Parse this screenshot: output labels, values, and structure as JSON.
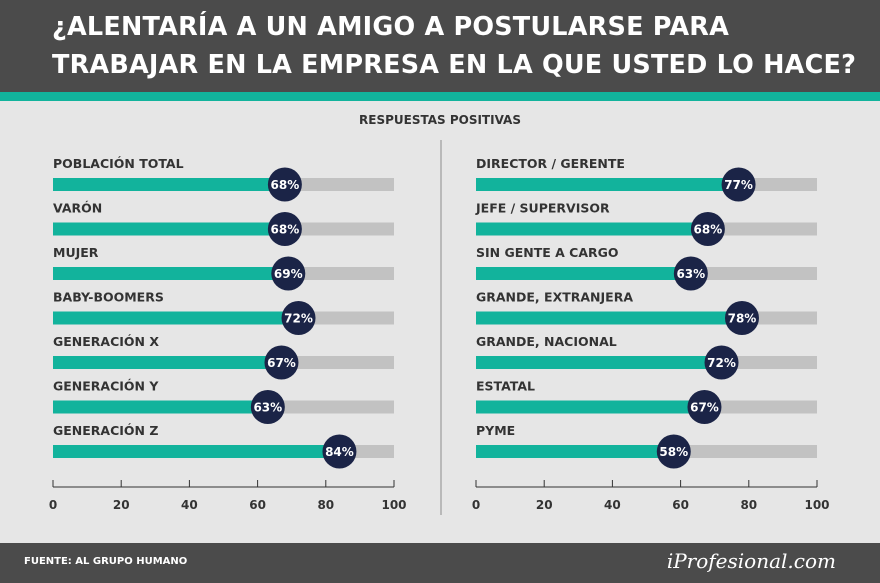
{
  "title": "¿ALENTARÍA A UN AMIGO A POSTULARSE PARA TRABAJAR EN LA EMPRESA EN LA QUE USTED LO HACE?",
  "subtitle": "RESPUESTAS POSITIVAS",
  "source": "FUENTE: AL GRUPO HUMANO",
  "brand": "iProfesional.com",
  "colors": {
    "header": "#4b4b4b",
    "accent": "#12b39c",
    "bar": "#12b39c",
    "track": "#c2c2c2",
    "badge": "#1b2447",
    "background": "#e6e6e6"
  },
  "chart_data": [
    {
      "type": "bar",
      "orientation": "horizontal",
      "categories": [
        "POBLACIÓN TOTAL",
        "VARÓN",
        "MUJER",
        "BABY-BOOMERS",
        "GENERACIÓN X",
        "GENERACIÓN Y",
        "GENERACIÓN Z"
      ],
      "values": [
        68,
        68,
        69,
        72,
        67,
        63,
        84
      ],
      "value_labels": [
        "68%",
        "68%",
        "69%",
        "72%",
        "67%",
        "63%",
        "84%"
      ],
      "xlim": [
        0,
        100
      ],
      "xticks": [
        0,
        20,
        40,
        60,
        80,
        100
      ],
      "grid": false
    },
    {
      "type": "bar",
      "orientation": "horizontal",
      "categories": [
        "DIRECTOR / GERENTE",
        "JEFE / SUPERVISOR",
        "SIN GENTE A CARGO",
        "GRANDE, EXTRANJERA",
        "GRANDE, NACIONAL",
        "ESTATAL",
        "PYME"
      ],
      "values": [
        77,
        68,
        63,
        78,
        72,
        67,
        58
      ],
      "value_labels": [
        "77%",
        "68%",
        "63%",
        "78%",
        "72%",
        "67%",
        "58%"
      ],
      "xlim": [
        0,
        100
      ],
      "xticks": [
        0,
        20,
        40,
        60,
        80,
        100
      ],
      "grid": false
    }
  ]
}
